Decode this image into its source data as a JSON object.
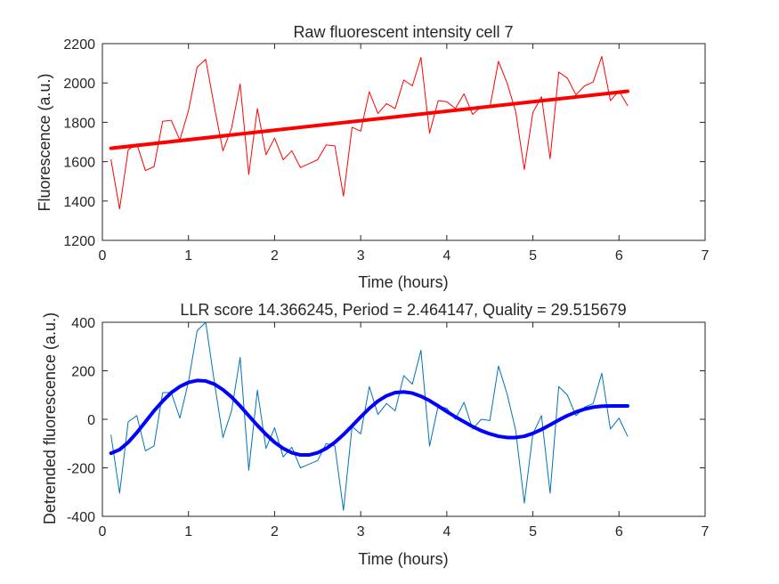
{
  "chart_data": [
    {
      "type": "line",
      "title": "Raw fluorescent intensity cell 7",
      "xlabel": "Time (hours)",
      "ylabel": "Fluorescence (a.u.)",
      "xlim": [
        0,
        7
      ],
      "ylim": [
        1200,
        2200
      ],
      "xticks": [
        0,
        1,
        2,
        3,
        4,
        5,
        6,
        7
      ],
      "yticks": [
        1200,
        1400,
        1600,
        1800,
        2000,
        2200
      ],
      "grid": false,
      "series": [
        {
          "role": "raw",
          "color": "#ff0000",
          "x": [
            0.1,
            0.2,
            0.3,
            0.4,
            0.5,
            0.6,
            0.7,
            0.8,
            0.9,
            1.0,
            1.1,
            1.2,
            1.3,
            1.4,
            1.5,
            1.6,
            1.7,
            1.8,
            1.9,
            2.0,
            2.1,
            2.2,
            2.3,
            2.4,
            2.5,
            2.6,
            2.7,
            2.8,
            2.9,
            3.0,
            3.1,
            3.2,
            3.3,
            3.4,
            3.5,
            3.6,
            3.7,
            3.8,
            3.9,
            4.0,
            4.1,
            4.2,
            4.3,
            4.4,
            4.5,
            4.6,
            4.7,
            4.8,
            4.9,
            5.0,
            5.1,
            5.2,
            5.3,
            5.4,
            5.5,
            5.6,
            5.7,
            5.8,
            5.9,
            6.0,
            6.1
          ],
          "values": [
            1610,
            1360,
            1660,
            1690,
            1555,
            1575,
            1805,
            1810,
            1710,
            1860,
            2080,
            2120,
            1880,
            1655,
            1770,
            1995,
            1535,
            1870,
            1635,
            1720,
            1610,
            1655,
            1570,
            1590,
            1610,
            1685,
            1680,
            1425,
            1775,
            1755,
            1955,
            1845,
            1895,
            1870,
            2015,
            1985,
            2130,
            1745,
            1910,
            1905,
            1870,
            1945,
            1840,
            1880,
            1875,
            2110,
            2000,
            1855,
            1560,
            1850,
            1930,
            1615,
            2055,
            2025,
            1940,
            1985,
            2005,
            2135,
            1910,
            1960,
            1885
          ]
        },
        {
          "role": "linear trend",
          "color": "#ff0000",
          "x": [
            0.1,
            6.1
          ],
          "values": [
            1668,
            1958
          ]
        }
      ]
    },
    {
      "type": "line",
      "title": "LLR score 14.366245, Period = 2.464147, Quality = 29.515679",
      "xlabel": "Time (hours)",
      "ylabel": "Detrended fluorescence (a.u.)",
      "xlim": [
        0,
        7
      ],
      "ylim": [
        -400,
        400
      ],
      "xticks": [
        0,
        1,
        2,
        3,
        4,
        5,
        6,
        7
      ],
      "yticks": [
        -400,
        -200,
        0,
        200,
        400
      ],
      "grid": false,
      "series": [
        {
          "role": "detrended",
          "color": "#0072bd",
          "x": [
            0.1,
            0.2,
            0.3,
            0.4,
            0.5,
            0.6,
            0.7,
            0.8,
            0.9,
            1.0,
            1.1,
            1.2,
            1.3,
            1.4,
            1.5,
            1.6,
            1.7,
            1.8,
            1.9,
            2.0,
            2.1,
            2.2,
            2.3,
            2.4,
            2.5,
            2.6,
            2.7,
            2.8,
            2.9,
            3.0,
            3.1,
            3.2,
            3.3,
            3.4,
            3.5,
            3.6,
            3.7,
            3.8,
            3.9,
            4.0,
            4.1,
            4.2,
            4.3,
            4.4,
            4.5,
            4.6,
            4.7,
            4.8,
            4.9,
            5.0,
            5.1,
            5.2,
            5.3,
            5.4,
            5.5,
            5.6,
            5.7,
            5.8,
            5.9,
            6.0,
            6.1
          ],
          "values": [
            -65,
            -305,
            -10,
            15,
            -130,
            -110,
            110,
            110,
            5,
            155,
            365,
            400,
            155,
            -75,
            35,
            255,
            -210,
            120,
            -120,
            -35,
            -155,
            -115,
            -200,
            -185,
            -170,
            -100,
            -110,
            -375,
            -30,
            -60,
            135,
            20,
            65,
            35,
            180,
            145,
            285,
            -110,
            55,
            45,
            0,
            70,
            -40,
            0,
            -5,
            220,
            105,
            -45,
            -345,
            -60,
            15,
            -305,
            135,
            100,
            15,
            50,
            65,
            190,
            -40,
            5,
            -70
          ]
        },
        {
          "role": "sinusoidal fit",
          "color": "#0000ff",
          "x": [
            0.1,
            0.2,
            0.3,
            0.4,
            0.5,
            0.6,
            0.7,
            0.8,
            0.9,
            1.0,
            1.1,
            1.2,
            1.3,
            1.4,
            1.5,
            1.6,
            1.7,
            1.8,
            1.9,
            2.0,
            2.1,
            2.2,
            2.3,
            2.4,
            2.5,
            2.6,
            2.7,
            2.8,
            2.9,
            3.0,
            3.1,
            3.2,
            3.3,
            3.4,
            3.5,
            3.6,
            3.7,
            3.8,
            3.9,
            4.0,
            4.1,
            4.2,
            4.3,
            4.4,
            4.5,
            4.6,
            4.7,
            4.8,
            4.9,
            5.0,
            5.1,
            5.2,
            5.3,
            5.4,
            5.5,
            5.6,
            5.7,
            5.8,
            5.9,
            6.0,
            6.1
          ],
          "values": [
            -140,
            -125,
            -95,
            -55,
            -10,
            35,
            75,
            110,
            135,
            152,
            160,
            158,
            145,
            122,
            92,
            55,
            15,
            -25,
            -62,
            -95,
            -120,
            -138,
            -147,
            -147,
            -138,
            -120,
            -95,
            -63,
            -27,
            10,
            45,
            75,
            97,
            110,
            113,
            108,
            95,
            77,
            55,
            32,
            10,
            -10,
            -30,
            -47,
            -60,
            -70,
            -75,
            -75,
            -70,
            -58,
            -42,
            -23,
            -3,
            15,
            30,
            42,
            50,
            54,
            55,
            55,
            55
          ]
        }
      ]
    }
  ]
}
